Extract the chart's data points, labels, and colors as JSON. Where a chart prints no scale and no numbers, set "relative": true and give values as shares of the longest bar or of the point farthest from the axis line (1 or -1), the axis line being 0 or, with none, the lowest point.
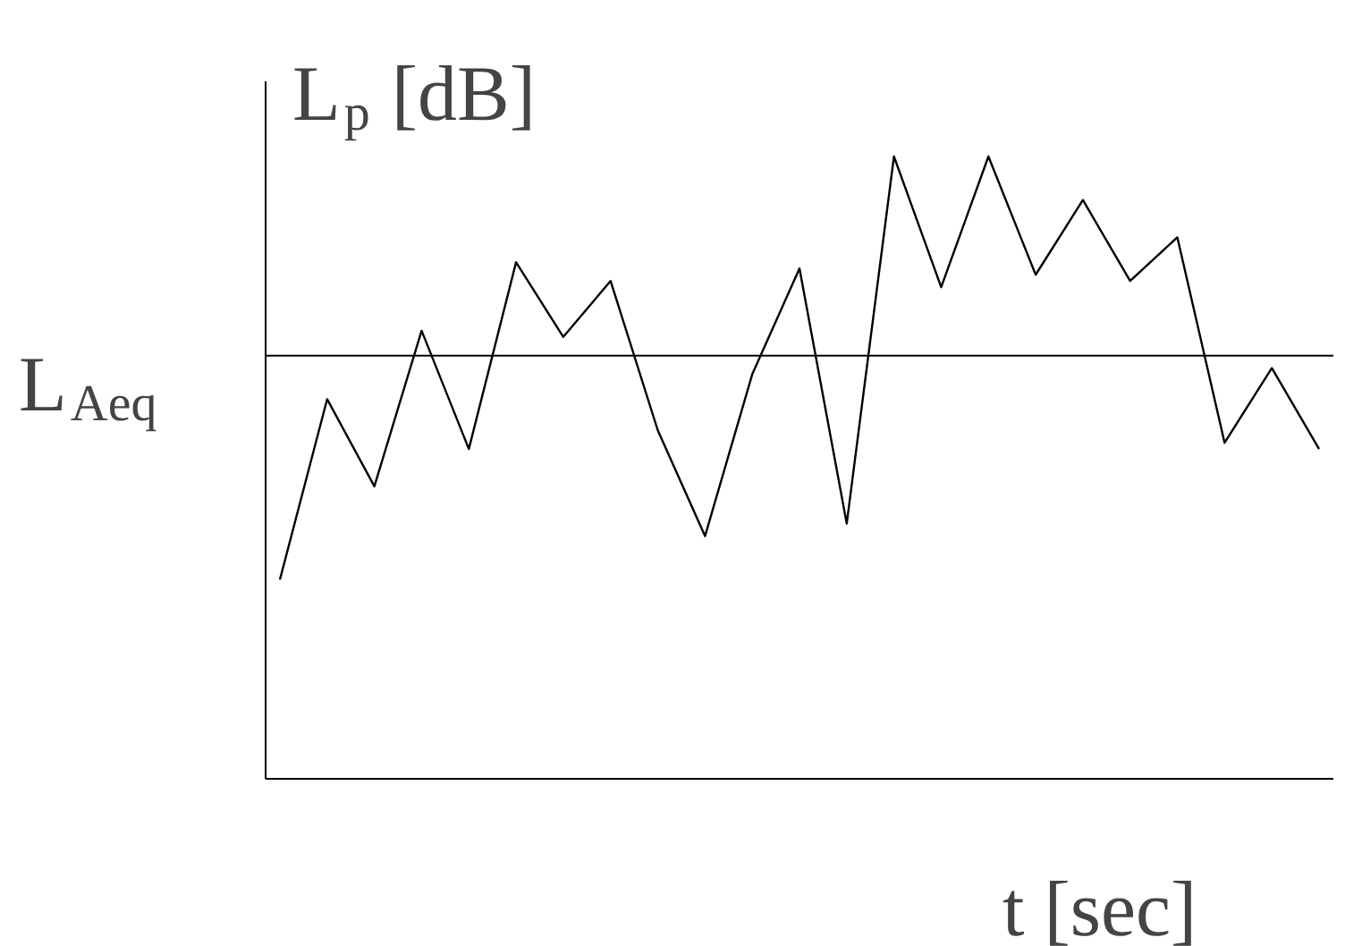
{
  "chart_data": {
    "type": "line",
    "relative": true,
    "ylabel": "L$_{p}$ [dB]",
    "xlabel": "t [sec]",
    "categories": [
      null,
      null,
      null,
      null,
      null,
      null,
      null,
      null,
      null,
      null,
      null,
      null,
      null,
      null,
      null,
      null,
      null,
      null,
      null,
      null,
      null,
      null,
      null
    ],
    "series": [
      {
        "color": "#000000",
        "values": [
          0.32,
          0.61,
          0.47,
          0.72,
          0.53,
          0.83,
          0.71,
          0.8,
          0.56,
          0.39,
          0.65,
          0.82,
          0.41,
          1.0,
          0.79,
          1.0,
          0.81,
          0.93,
          0.8,
          0.87,
          0.54,
          0.66,
          0.53
        ]
      }
    ],
    "ref_lines": [
      {
        "axis": "y",
        "value": 0.68,
        "label": "L$_{Aeq}$",
        "color": "#000000"
      }
    ]
  }
}
